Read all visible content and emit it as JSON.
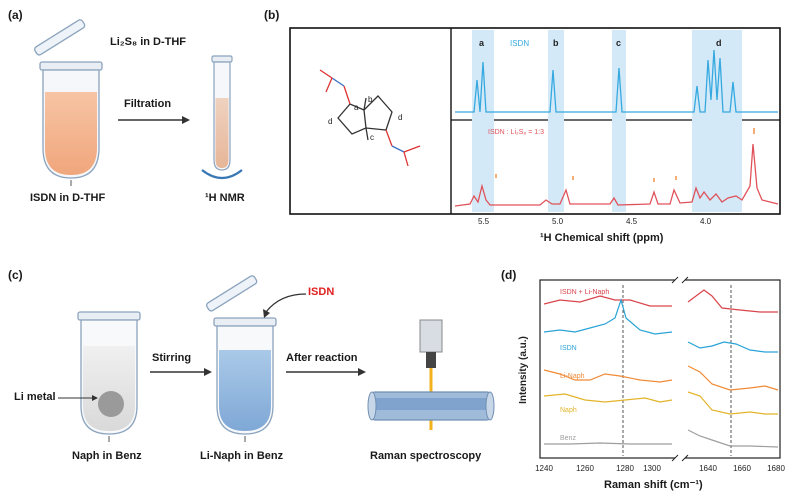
{
  "panels": {
    "a": "(a)",
    "b": "(b)",
    "c": "(c)",
    "d": "(d)"
  },
  "panel_a": {
    "reagent": "Li₂S₈ in D-THF",
    "tube_label": "ISDN in D-THF",
    "arrow_label": "Filtration",
    "nmr_label": "¹H NMR"
  },
  "panel_b": {
    "peak_labels": [
      "a",
      "b",
      "c",
      "d"
    ],
    "atom_labels": [
      "a",
      "b",
      "c",
      "d"
    ],
    "top_legend": "ISDN",
    "bottom_legend": "ISDN : Li₂S₈ = 1:3",
    "xticks": [
      "5.5",
      "5.0",
      "4.5",
      "4.0"
    ],
    "xlabel": "¹H Chemical shift (ppm)"
  },
  "panel_c": {
    "li_metal": "Li metal",
    "tube1": "Naph in Benz",
    "arrow1": "Stirring",
    "isdn": "ISDN",
    "tube2": "Li-Naph in Benz",
    "arrow2": "After reaction",
    "raman": "Raman spectroscopy"
  },
  "panel_d": {
    "ylabel": "Intensity (a.u.)",
    "xlabel": "Raman shift (cm⁻¹)",
    "xticks_left": [
      "1240",
      "1260",
      "1280",
      "1300"
    ],
    "xticks_right": [
      "1640",
      "1660",
      "1680"
    ],
    "traces": [
      "ISDN + Li-Naph",
      "ISDN",
      "Li-Naph",
      "Naph",
      "Benz"
    ],
    "colors": [
      "#d9444b",
      "#2aa3d6",
      "#f08a36",
      "#e3b429",
      "#9e9e9e"
    ]
  },
  "colors": {
    "nmr_top": "#35a9e0",
    "nmr_bottom": "#e0525a",
    "highlight": "#d3e9f7"
  }
}
